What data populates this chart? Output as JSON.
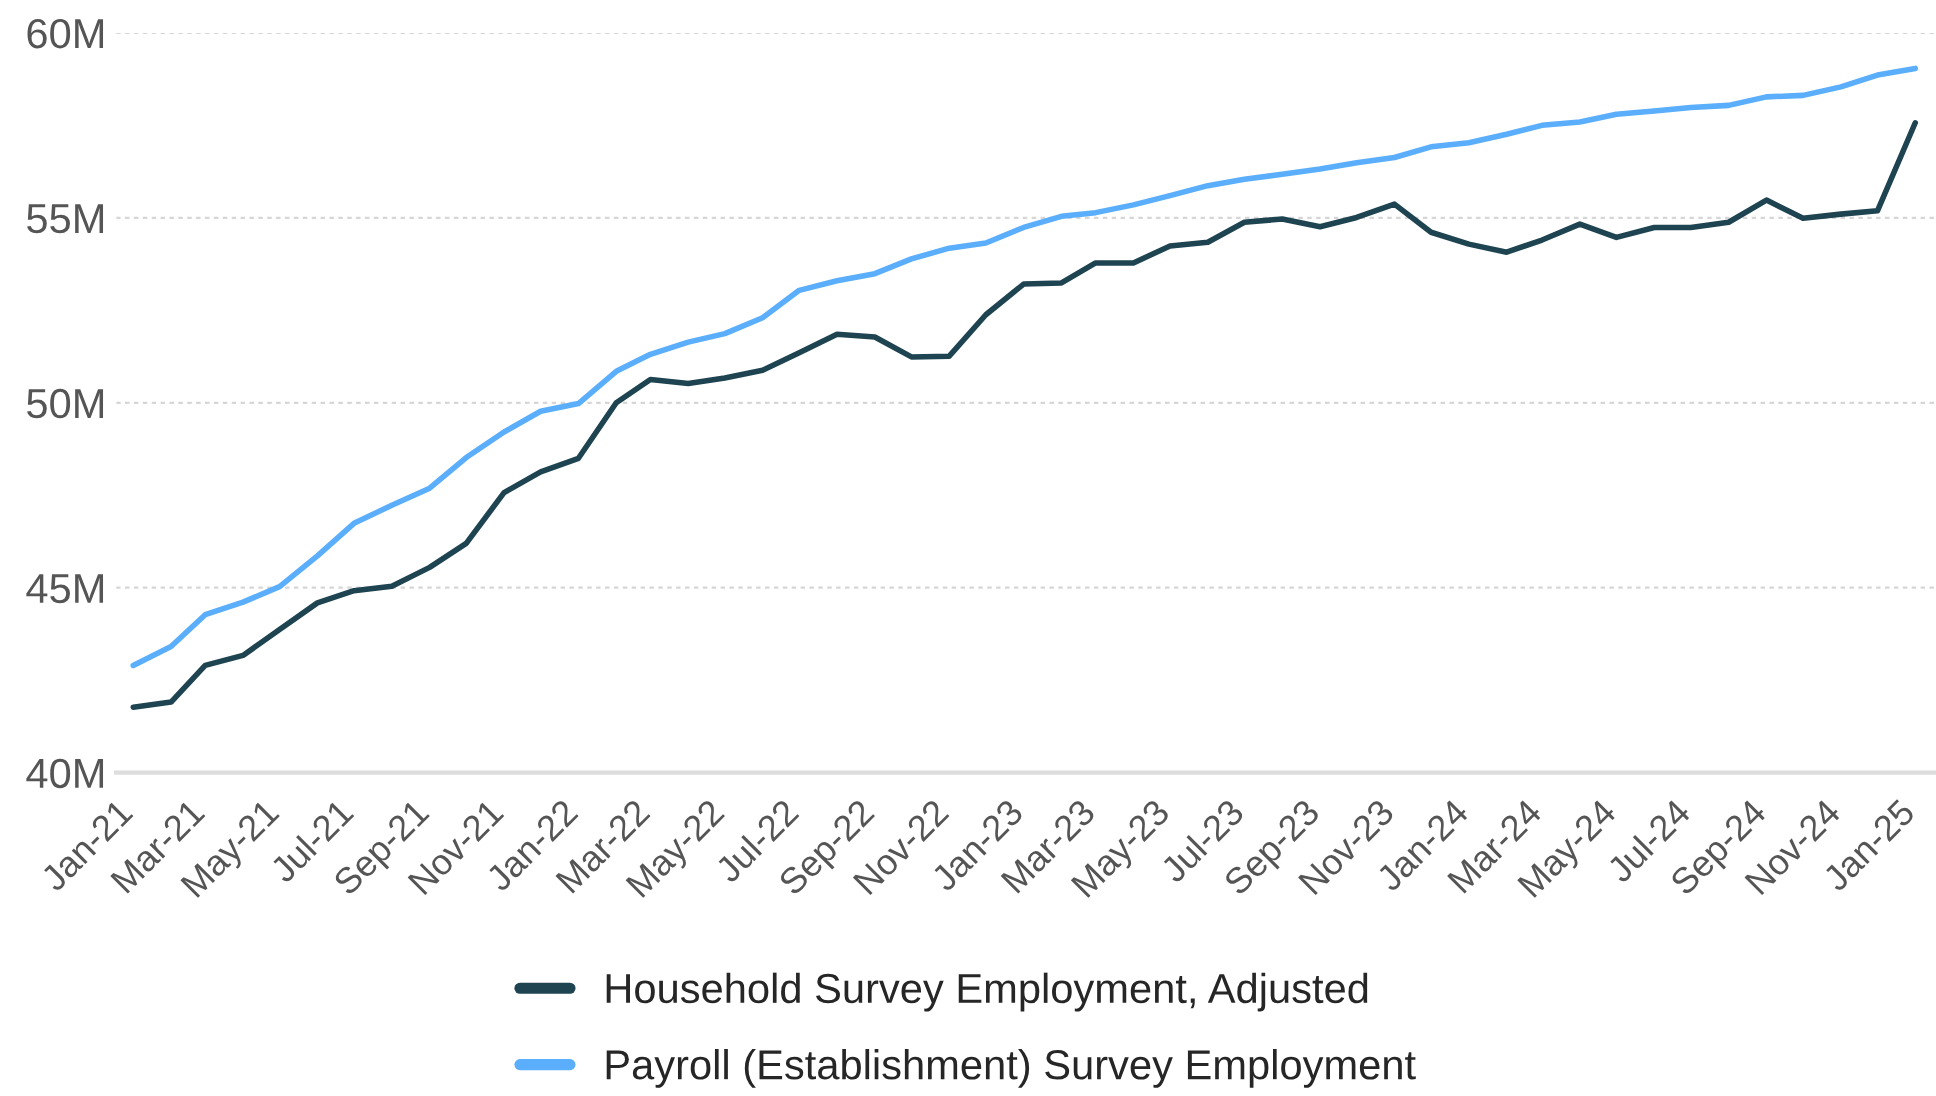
{
  "chart_data": {
    "type": "line",
    "x": [
      "2021-01-15",
      "2021-02-15",
      "2021-03-15",
      "2021-04-15",
      "2021-05-15",
      "2021-06-15",
      "2021-07-15",
      "2021-08-15",
      "2021-09-15",
      "2021-10-15",
      "2021-11-15",
      "2021-12-15",
      "2022-01-15",
      "2022-02-15",
      "2022-03-15",
      "2022-04-15",
      "2022-05-15",
      "2022-06-15",
      "2022-07-15",
      "2022-08-15",
      "2022-09-15",
      "2022-10-15",
      "2022-11-15",
      "2022-12-15",
      "2023-01-15",
      "2023-02-15",
      "2023-03-15",
      "2023-04-15",
      "2023-05-15",
      "2023-06-15",
      "2023-07-15",
      "2023-08-15",
      "2023-09-15",
      "2023-10-15",
      "2023-11-15",
      "2023-12-15",
      "2024-01-15",
      "2024-02-15",
      "2024-03-15",
      "2024-04-15",
      "2024-05-15",
      "2024-06-15",
      "2024-07-15",
      "2024-08-15",
      "2024-09-15",
      "2024-10-15",
      "2024-11-15",
      "2024-12-15",
      "2025-01-15"
    ],
    "series": [
      {
        "name": "Household Survey Employment, Adjusted",
        "color": "#1f4451",
        "values": [
          41.77,
          41.91,
          42.9,
          43.17,
          43.87,
          44.59,
          44.92,
          45.04,
          45.55,
          46.2,
          47.57,
          48.13,
          48.5,
          50.0,
          50.63,
          50.52,
          50.67,
          50.88,
          51.35,
          51.85,
          51.78,
          51.24,
          51.26,
          52.38,
          53.21,
          53.24,
          53.78,
          53.78,
          54.24,
          54.34,
          54.88,
          54.97,
          54.76,
          55.01,
          55.37,
          54.61,
          54.29,
          54.07,
          54.4,
          54.83,
          54.47,
          54.74,
          54.74,
          54.88,
          55.48,
          54.99,
          55.1,
          55.19,
          57.57
        ]
      },
      {
        "name": "Payroll (Establishment) Survey Employment",
        "color": "#5aaefc",
        "values": [
          42.9,
          43.41,
          44.27,
          44.61,
          45.03,
          45.86,
          46.74,
          47.23,
          47.69,
          48.52,
          49.21,
          49.77,
          49.98,
          50.85,
          51.31,
          51.64,
          51.87,
          52.3,
          53.04,
          53.3,
          53.49,
          53.89,
          54.18,
          54.32,
          54.74,
          55.04,
          55.14,
          55.35,
          55.6,
          55.87,
          56.04,
          56.18,
          56.32,
          56.49,
          56.63,
          56.92,
          57.03,
          57.26,
          57.5,
          57.59,
          57.8,
          57.89,
          57.98,
          58.04,
          58.27,
          58.31,
          58.54,
          58.86,
          59.04
        ]
      }
    ],
    "xlim": [
      "2021-01-01",
      "2025-02-01"
    ],
    "xticks": [
      {
        "value": "2021-01-01",
        "label": "Jan-21"
      },
      {
        "value": "2021-03-01",
        "label": "Mar-21"
      },
      {
        "value": "2021-05-01",
        "label": "May-21"
      },
      {
        "value": "2021-07-01",
        "label": "Jul-21"
      },
      {
        "value": "2021-09-01",
        "label": "Sep-21"
      },
      {
        "value": "2021-11-01",
        "label": "Nov-21"
      },
      {
        "value": "2022-01-01",
        "label": "Jan-22"
      },
      {
        "value": "2022-03-01",
        "label": "Mar-22"
      },
      {
        "value": "2022-05-01",
        "label": "May-22"
      },
      {
        "value": "2022-07-01",
        "label": "Jul-22"
      },
      {
        "value": "2022-09-01",
        "label": "Sep-22"
      },
      {
        "value": "2022-11-01",
        "label": "Nov-22"
      },
      {
        "value": "2023-01-01",
        "label": "Jan-23"
      },
      {
        "value": "2023-03-01",
        "label": "Mar-23"
      },
      {
        "value": "2023-05-01",
        "label": "May-23"
      },
      {
        "value": "2023-07-01",
        "label": "Jul-23"
      },
      {
        "value": "2023-09-01",
        "label": "Sep-23"
      },
      {
        "value": "2023-11-01",
        "label": "Nov-23"
      },
      {
        "value": "2024-01-01",
        "label": "Jan-24"
      },
      {
        "value": "2024-03-01",
        "label": "Mar-24"
      },
      {
        "value": "2024-05-01",
        "label": "May-24"
      },
      {
        "value": "2024-07-01",
        "label": "Jul-24"
      },
      {
        "value": "2024-09-01",
        "label": "Sep-24"
      },
      {
        "value": "2024-11-01",
        "label": "Nov-24"
      },
      {
        "value": "2025-01-01",
        "label": "Jan-25"
      }
    ],
    "ylim": [
      40,
      60
    ],
    "yticks": [
      {
        "value": 40,
        "label": "40M"
      },
      {
        "value": 45,
        "label": "45M"
      },
      {
        "value": 50,
        "label": "50M"
      },
      {
        "value": 55,
        "label": "55M"
      },
      {
        "value": 60,
        "label": "60M"
      }
    ],
    "grid": "y",
    "legend": "bottom",
    "marker": "none",
    "line_style": "solid"
  }
}
